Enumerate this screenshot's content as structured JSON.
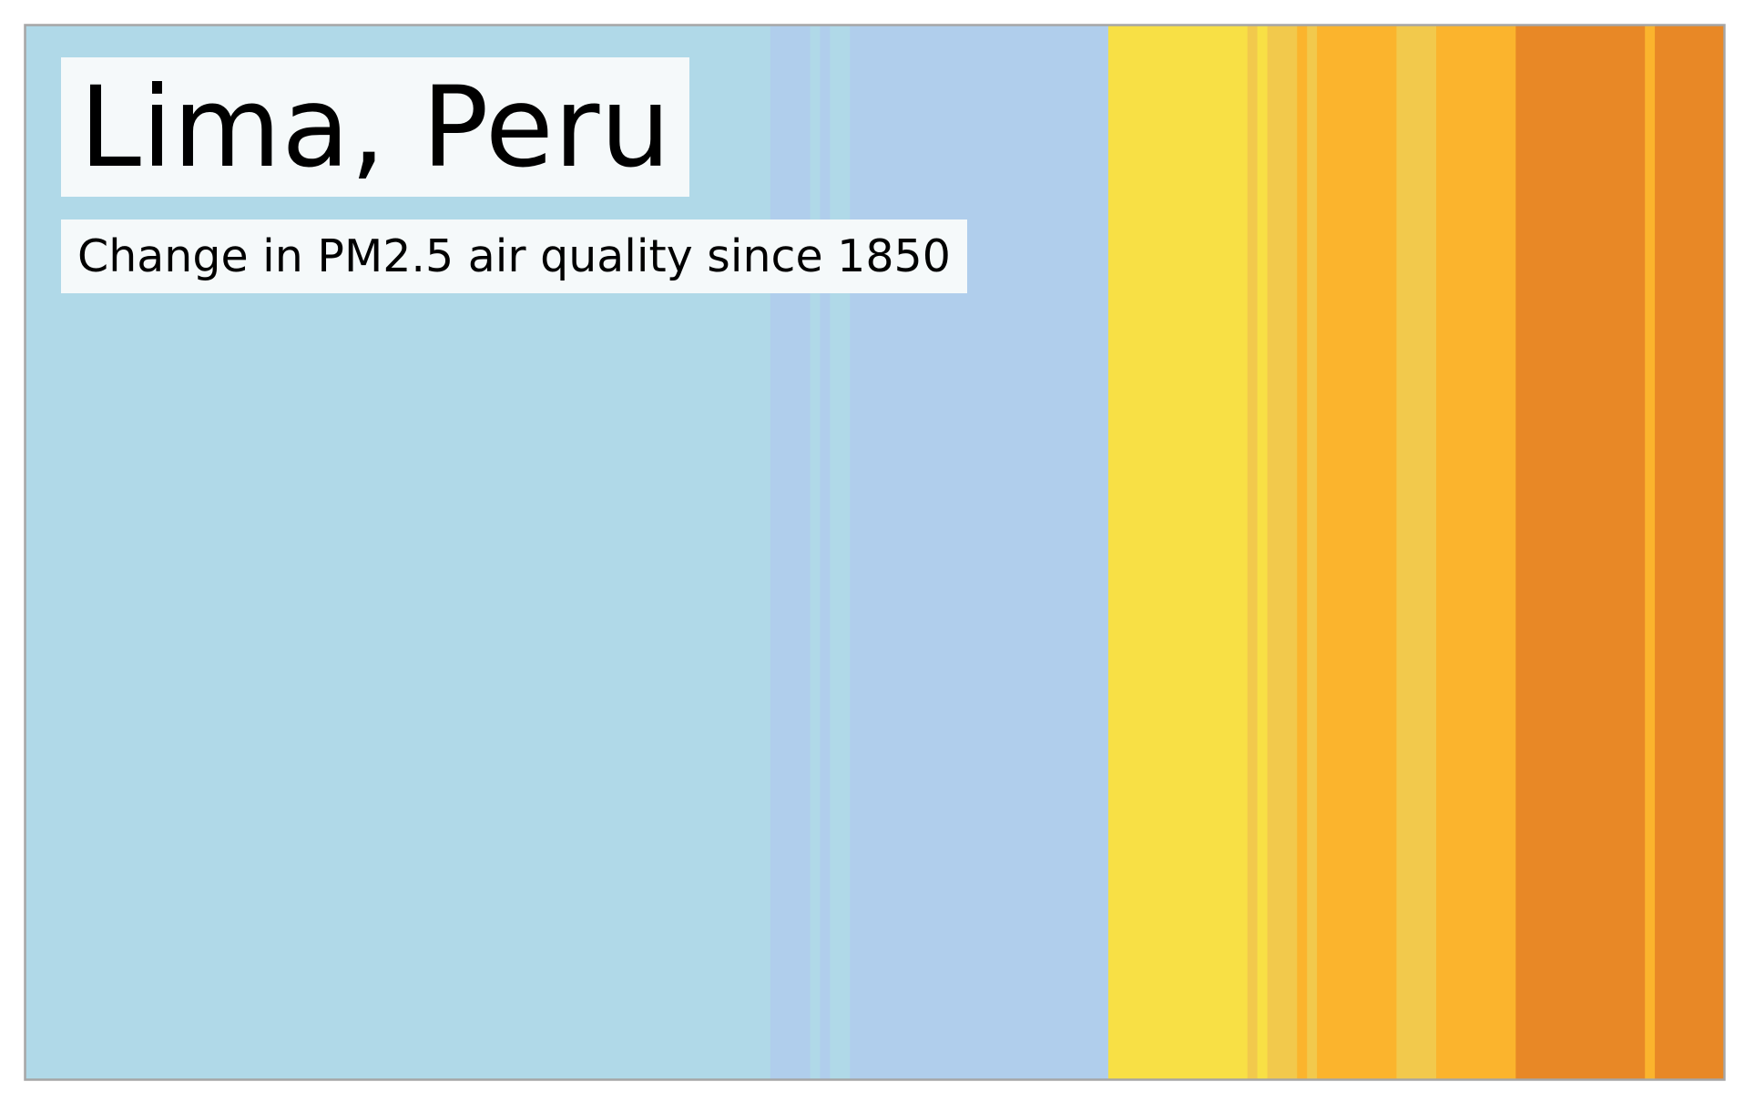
{
  "chart_data": {
    "type": "bar",
    "title": "Lima, Peru",
    "subtitle": "Change in PM2.5 air quality since 1850",
    "x_start": 1850,
    "palette": {
      "light-blue": "#b0d9e8",
      "steel-blue": "#b0ceec",
      "yellow": "#f8e045",
      "light-amber": "#f2c94c",
      "amber": "#fbb42d",
      "dark-orange": "#e88826"
    },
    "stripes": [
      {
        "color": "light-blue",
        "years": 75
      },
      {
        "color": "steel-blue",
        "years": 4
      },
      {
        "color": "light-blue",
        "years": 1
      },
      {
        "color": "steel-blue",
        "years": 1
      },
      {
        "color": "light-blue",
        "years": 2
      },
      {
        "color": "steel-blue",
        "years": 26
      },
      {
        "color": "yellow",
        "years": 14
      },
      {
        "color": "light-amber",
        "years": 1
      },
      {
        "color": "yellow",
        "years": 1
      },
      {
        "color": "light-amber",
        "years": 3
      },
      {
        "color": "amber",
        "years": 1
      },
      {
        "color": "light-amber",
        "years": 1
      },
      {
        "color": "amber",
        "years": 8
      },
      {
        "color": "light-amber",
        "years": 4
      },
      {
        "color": "amber",
        "years": 8
      },
      {
        "color": "dark-orange",
        "years": 13
      },
      {
        "color": "amber",
        "years": 1
      },
      {
        "color": "dark-orange",
        "years": 7
      }
    ],
    "border_color": "#a6a6a6"
  }
}
